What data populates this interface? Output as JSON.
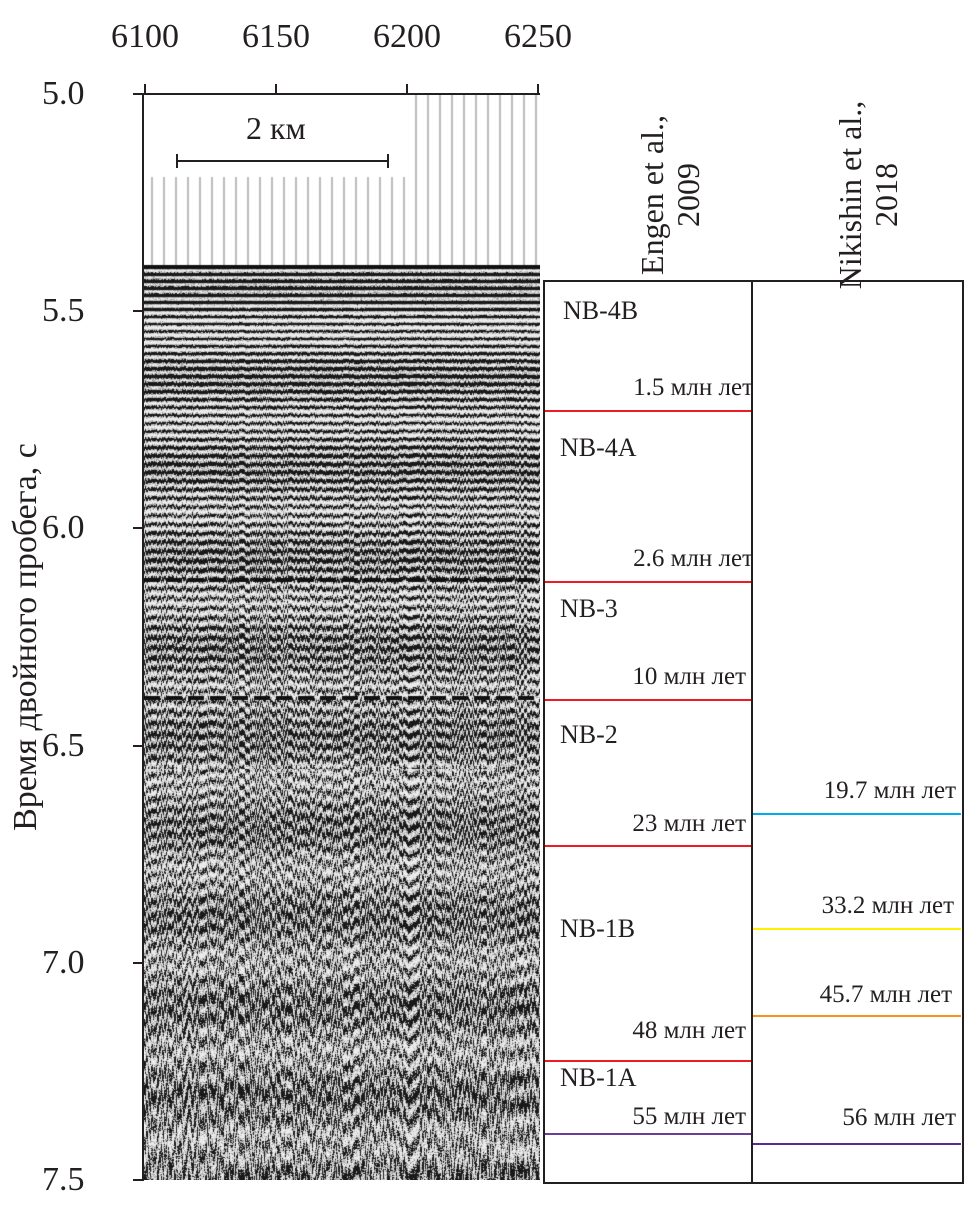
{
  "x_axis": {
    "ticks": [
      "6100",
      "6150",
      "6200",
      "6250"
    ]
  },
  "y_axis": {
    "label": "Время двойного пробега, с",
    "ticks": [
      "5.0",
      "5.5",
      "6.0",
      "6.5",
      "7.0",
      "7.5"
    ]
  },
  "scale_bar": {
    "label": "2 км"
  },
  "columns": [
    {
      "title_line1": "Engen et al.,",
      "title_line2": "2009",
      "units": [
        {
          "label": "NB-4B"
        },
        {
          "label": "NB-4A"
        },
        {
          "label": "NB-3"
        },
        {
          "label": "NB-2"
        },
        {
          "label": "NB-1B"
        },
        {
          "label": "NB-1A"
        }
      ],
      "boundaries": [
        {
          "label": "1.5 млн лет",
          "color": "#ed1c24"
        },
        {
          "label": "2.6 млн лет",
          "color": "#ed1c24"
        },
        {
          "label": "10 млн лет",
          "color": "#ed1c24"
        },
        {
          "label": "23 млн лет",
          "color": "#ed1c24"
        },
        {
          "label": "48 млн лет",
          "color": "#ed1c24"
        },
        {
          "label": "55 млн лет",
          "color": "#6a3d9a"
        }
      ]
    },
    {
      "title_line1": "Nikishin et al.,",
      "title_line2": "2018",
      "boundaries": [
        {
          "label": "19.7 млн лет",
          "color": "#00aeef"
        },
        {
          "label": "33.2 млн лет",
          "color": "#fff200"
        },
        {
          "label": "45.7 млн лет",
          "color": "#f7941d"
        },
        {
          "label": "56 млн лет",
          "color": "#5b2c8f"
        }
      ]
    }
  ]
}
